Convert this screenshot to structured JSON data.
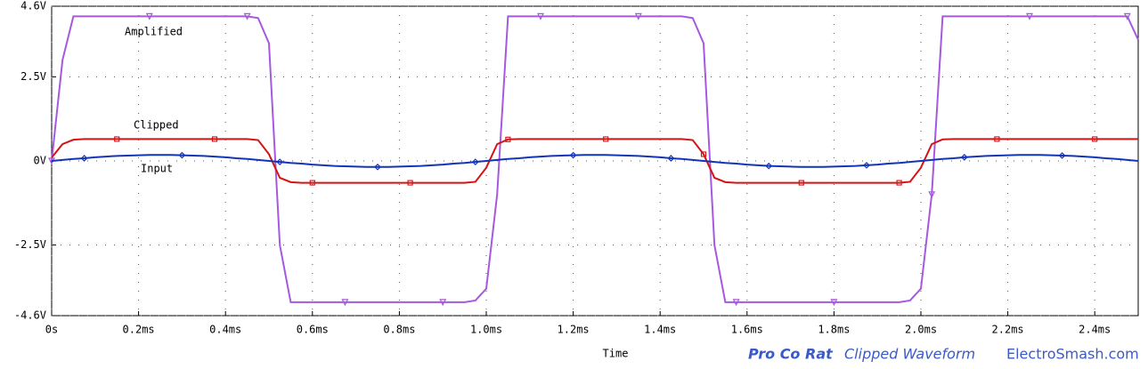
{
  "chart_data": {
    "type": "line",
    "x_label": "Time",
    "x": [
      0,
      0.025,
      0.05,
      0.075,
      0.1,
      0.125,
      0.15,
      0.175,
      0.2,
      0.225,
      0.25,
      0.275,
      0.3,
      0.325,
      0.35,
      0.375,
      0.4,
      0.425,
      0.45,
      0.475,
      0.5,
      0.525,
      0.55,
      0.575,
      0.6,
      0.625,
      0.65,
      0.675,
      0.7,
      0.725,
      0.75,
      0.775,
      0.8,
      0.825,
      0.85,
      0.875,
      0.9,
      0.925,
      0.95,
      0.975,
      1.0,
      1.025,
      1.05,
      1.075,
      1.1,
      1.125,
      1.15,
      1.175,
      1.2,
      1.225,
      1.25,
      1.275,
      1.3,
      1.325,
      1.35,
      1.375,
      1.4,
      1.425,
      1.45,
      1.475,
      1.5,
      1.525,
      1.55,
      1.575,
      1.6,
      1.625,
      1.65,
      1.675,
      1.7,
      1.725,
      1.75,
      1.775,
      1.8,
      1.825,
      1.85,
      1.875,
      1.9,
      1.925,
      1.95,
      1.975,
      2.0,
      2.025,
      2.05,
      2.075,
      2.1,
      2.125,
      2.15,
      2.175,
      2.2,
      2.225,
      2.25,
      2.275,
      2.3,
      2.325,
      2.35,
      2.375,
      2.4,
      2.425,
      2.45,
      2.475,
      2.5
    ],
    "series": [
      {
        "name": "Amplified",
        "color": "#a659e0",
        "marker": "triangle",
        "values": [
          0,
          3.0,
          4.3,
          4.3,
          4.3,
          4.3,
          4.3,
          4.3,
          4.3,
          4.3,
          4.3,
          4.3,
          4.3,
          4.3,
          4.3,
          4.3,
          4.3,
          4.3,
          4.3,
          4.25,
          3.5,
          -2.5,
          -4.2,
          -4.2,
          -4.2,
          -4.2,
          -4.2,
          -4.2,
          -4.2,
          -4.2,
          -4.2,
          -4.2,
          -4.2,
          -4.2,
          -4.2,
          -4.2,
          -4.2,
          -4.2,
          -4.2,
          -4.15,
          -3.8,
          -1.0,
          4.3,
          4.3,
          4.3,
          4.3,
          4.3,
          4.3,
          4.3,
          4.3,
          4.3,
          4.3,
          4.3,
          4.3,
          4.3,
          4.3,
          4.3,
          4.3,
          4.3,
          4.25,
          3.5,
          -2.5,
          -4.2,
          -4.2,
          -4.2,
          -4.2,
          -4.2,
          -4.2,
          -4.2,
          -4.2,
          -4.2,
          -4.2,
          -4.2,
          -4.2,
          -4.2,
          -4.2,
          -4.2,
          -4.2,
          -4.2,
          -4.15,
          -3.8,
          -1.0,
          4.3,
          4.3,
          4.3,
          4.3,
          4.3,
          4.3,
          4.3,
          4.3,
          4.3,
          4.3,
          4.3,
          4.3,
          4.3,
          4.3,
          4.3,
          4.3,
          4.3,
          4.3,
          3.6
        ]
      },
      {
        "name": "Clipped",
        "color": "#d41414",
        "marker": "square",
        "values": [
          0.1,
          0.5,
          0.63,
          0.65,
          0.65,
          0.65,
          0.65,
          0.65,
          0.65,
          0.65,
          0.65,
          0.65,
          0.65,
          0.65,
          0.65,
          0.65,
          0.65,
          0.65,
          0.65,
          0.62,
          0.2,
          -0.5,
          -0.63,
          -0.65,
          -0.65,
          -0.65,
          -0.65,
          -0.65,
          -0.65,
          -0.65,
          -0.65,
          -0.65,
          -0.65,
          -0.65,
          -0.65,
          -0.65,
          -0.65,
          -0.65,
          -0.65,
          -0.62,
          -0.2,
          0.5,
          0.64,
          0.65,
          0.65,
          0.65,
          0.65,
          0.65,
          0.65,
          0.65,
          0.65,
          0.65,
          0.65,
          0.65,
          0.65,
          0.65,
          0.65,
          0.65,
          0.65,
          0.62,
          0.2,
          -0.5,
          -0.63,
          -0.65,
          -0.65,
          -0.65,
          -0.65,
          -0.65,
          -0.65,
          -0.65,
          -0.65,
          -0.65,
          -0.65,
          -0.65,
          -0.65,
          -0.65,
          -0.65,
          -0.65,
          -0.65,
          -0.62,
          -0.2,
          0.5,
          0.64,
          0.65,
          0.65,
          0.65,
          0.65,
          0.65,
          0.65,
          0.65,
          0.65,
          0.65,
          0.65,
          0.65,
          0.65,
          0.65,
          0.65,
          0.65,
          0.65,
          0.65,
          0.65
        ]
      },
      {
        "name": "Input",
        "color": "#1434b8",
        "marker": "diamond",
        "values": [
          0,
          0.03,
          0.06,
          0.08,
          0.11,
          0.13,
          0.15,
          0.16,
          0.17,
          0.18,
          0.18,
          0.18,
          0.17,
          0.16,
          0.15,
          0.13,
          0.11,
          0.08,
          0.06,
          0.03,
          0,
          -0.03,
          -0.06,
          -0.08,
          -0.11,
          -0.13,
          -0.15,
          -0.16,
          -0.17,
          -0.18,
          -0.18,
          -0.18,
          -0.17,
          -0.16,
          -0.15,
          -0.13,
          -0.11,
          -0.08,
          -0.06,
          -0.03,
          0,
          0.03,
          0.06,
          0.08,
          0.11,
          0.13,
          0.15,
          0.16,
          0.17,
          0.18,
          0.18,
          0.18,
          0.17,
          0.16,
          0.15,
          0.13,
          0.11,
          0.08,
          0.06,
          0.03,
          0,
          -0.03,
          -0.06,
          -0.08,
          -0.11,
          -0.13,
          -0.15,
          -0.16,
          -0.17,
          -0.18,
          -0.18,
          -0.18,
          -0.17,
          -0.16,
          -0.15,
          -0.13,
          -0.11,
          -0.08,
          -0.06,
          -0.03,
          0,
          0.03,
          0.06,
          0.08,
          0.11,
          0.13,
          0.15,
          0.16,
          0.17,
          0.18,
          0.18,
          0.18,
          0.17,
          0.16,
          0.15,
          0.13,
          0.11,
          0.08,
          0.06,
          0.03,
          0
        ]
      }
    ],
    "xlim": [
      0,
      2.5
    ],
    "xticks": [
      {
        "value": 0,
        "label": "0s"
      },
      {
        "value": 0.2,
        "label": "0.2ms"
      },
      {
        "value": 0.4,
        "label": "0.4ms"
      },
      {
        "value": 0.6,
        "label": "0.6ms"
      },
      {
        "value": 0.8,
        "label": "0.8ms"
      },
      {
        "value": 1.0,
        "label": "1.0ms"
      },
      {
        "value": 1.2,
        "label": "1.2ms"
      },
      {
        "value": 1.4,
        "label": "1.4ms"
      },
      {
        "value": 1.6,
        "label": "1.6ms"
      },
      {
        "value": 1.8,
        "label": "1.8ms"
      },
      {
        "value": 2.0,
        "label": "2.0ms"
      },
      {
        "value": 2.2,
        "label": "2.2ms"
      },
      {
        "value": 2.4,
        "label": "2.4ms"
      }
    ],
    "ylim": [
      -4.6,
      4.6
    ],
    "yticks": [
      {
        "value": -4.6,
        "label": "-4.6V"
      },
      {
        "value": -2.5,
        "label": "-2.5V"
      },
      {
        "value": 0,
        "label": "0V"
      },
      {
        "value": 2.5,
        "label": "2.5V"
      },
      {
        "value": 4.6,
        "label": "4.6V"
      }
    ],
    "grid": true,
    "annotations": [
      "Pro Co Rat",
      "Clipped Waveform",
      "ElectroSmash.com"
    ]
  }
}
